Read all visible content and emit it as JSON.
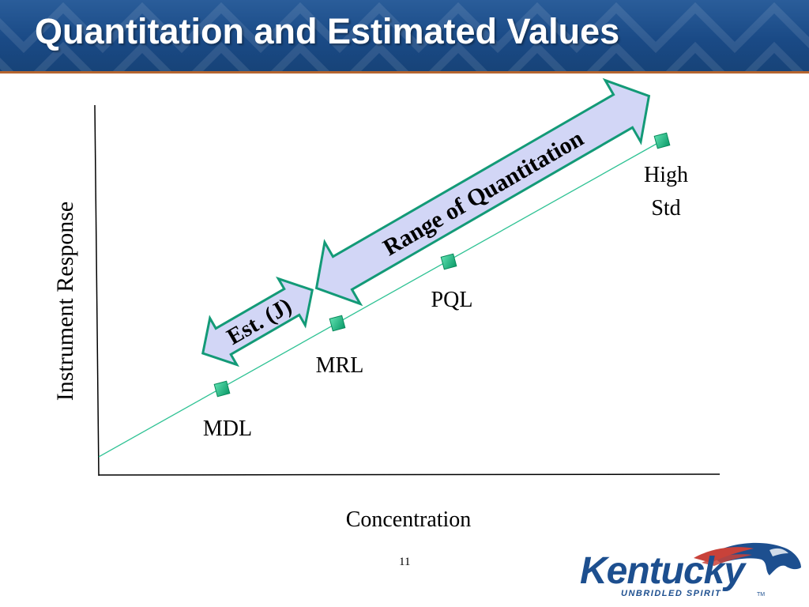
{
  "slide": {
    "title": "Quantitation and Estimated Values",
    "page_number": "11"
  },
  "axes": {
    "x_label": "Concentration",
    "y_label": "Instrument Response"
  },
  "points": [
    {
      "id": "mdl",
      "label": "MDL"
    },
    {
      "id": "mrl",
      "label": "MRL"
    },
    {
      "id": "pql",
      "label": "PQL"
    },
    {
      "id": "high-std",
      "label_line1": "High",
      "label_line2": "Std"
    }
  ],
  "arrows": {
    "estimated": "Est. (J)",
    "quantitation": "Range of Quantitation"
  },
  "logo": {
    "text": "Kentucky",
    "tagline": "UNBRIDLED SPIRIT",
    "trademark": "TM"
  },
  "colors": {
    "title_bar": "#1a4a86",
    "title_rule": "#b5652f",
    "marker_fill": "#0fb07a",
    "arrow_fill": "#d2d6f6",
    "arrow_stroke": "#139a77",
    "calibration_line": "#2fc294"
  }
}
